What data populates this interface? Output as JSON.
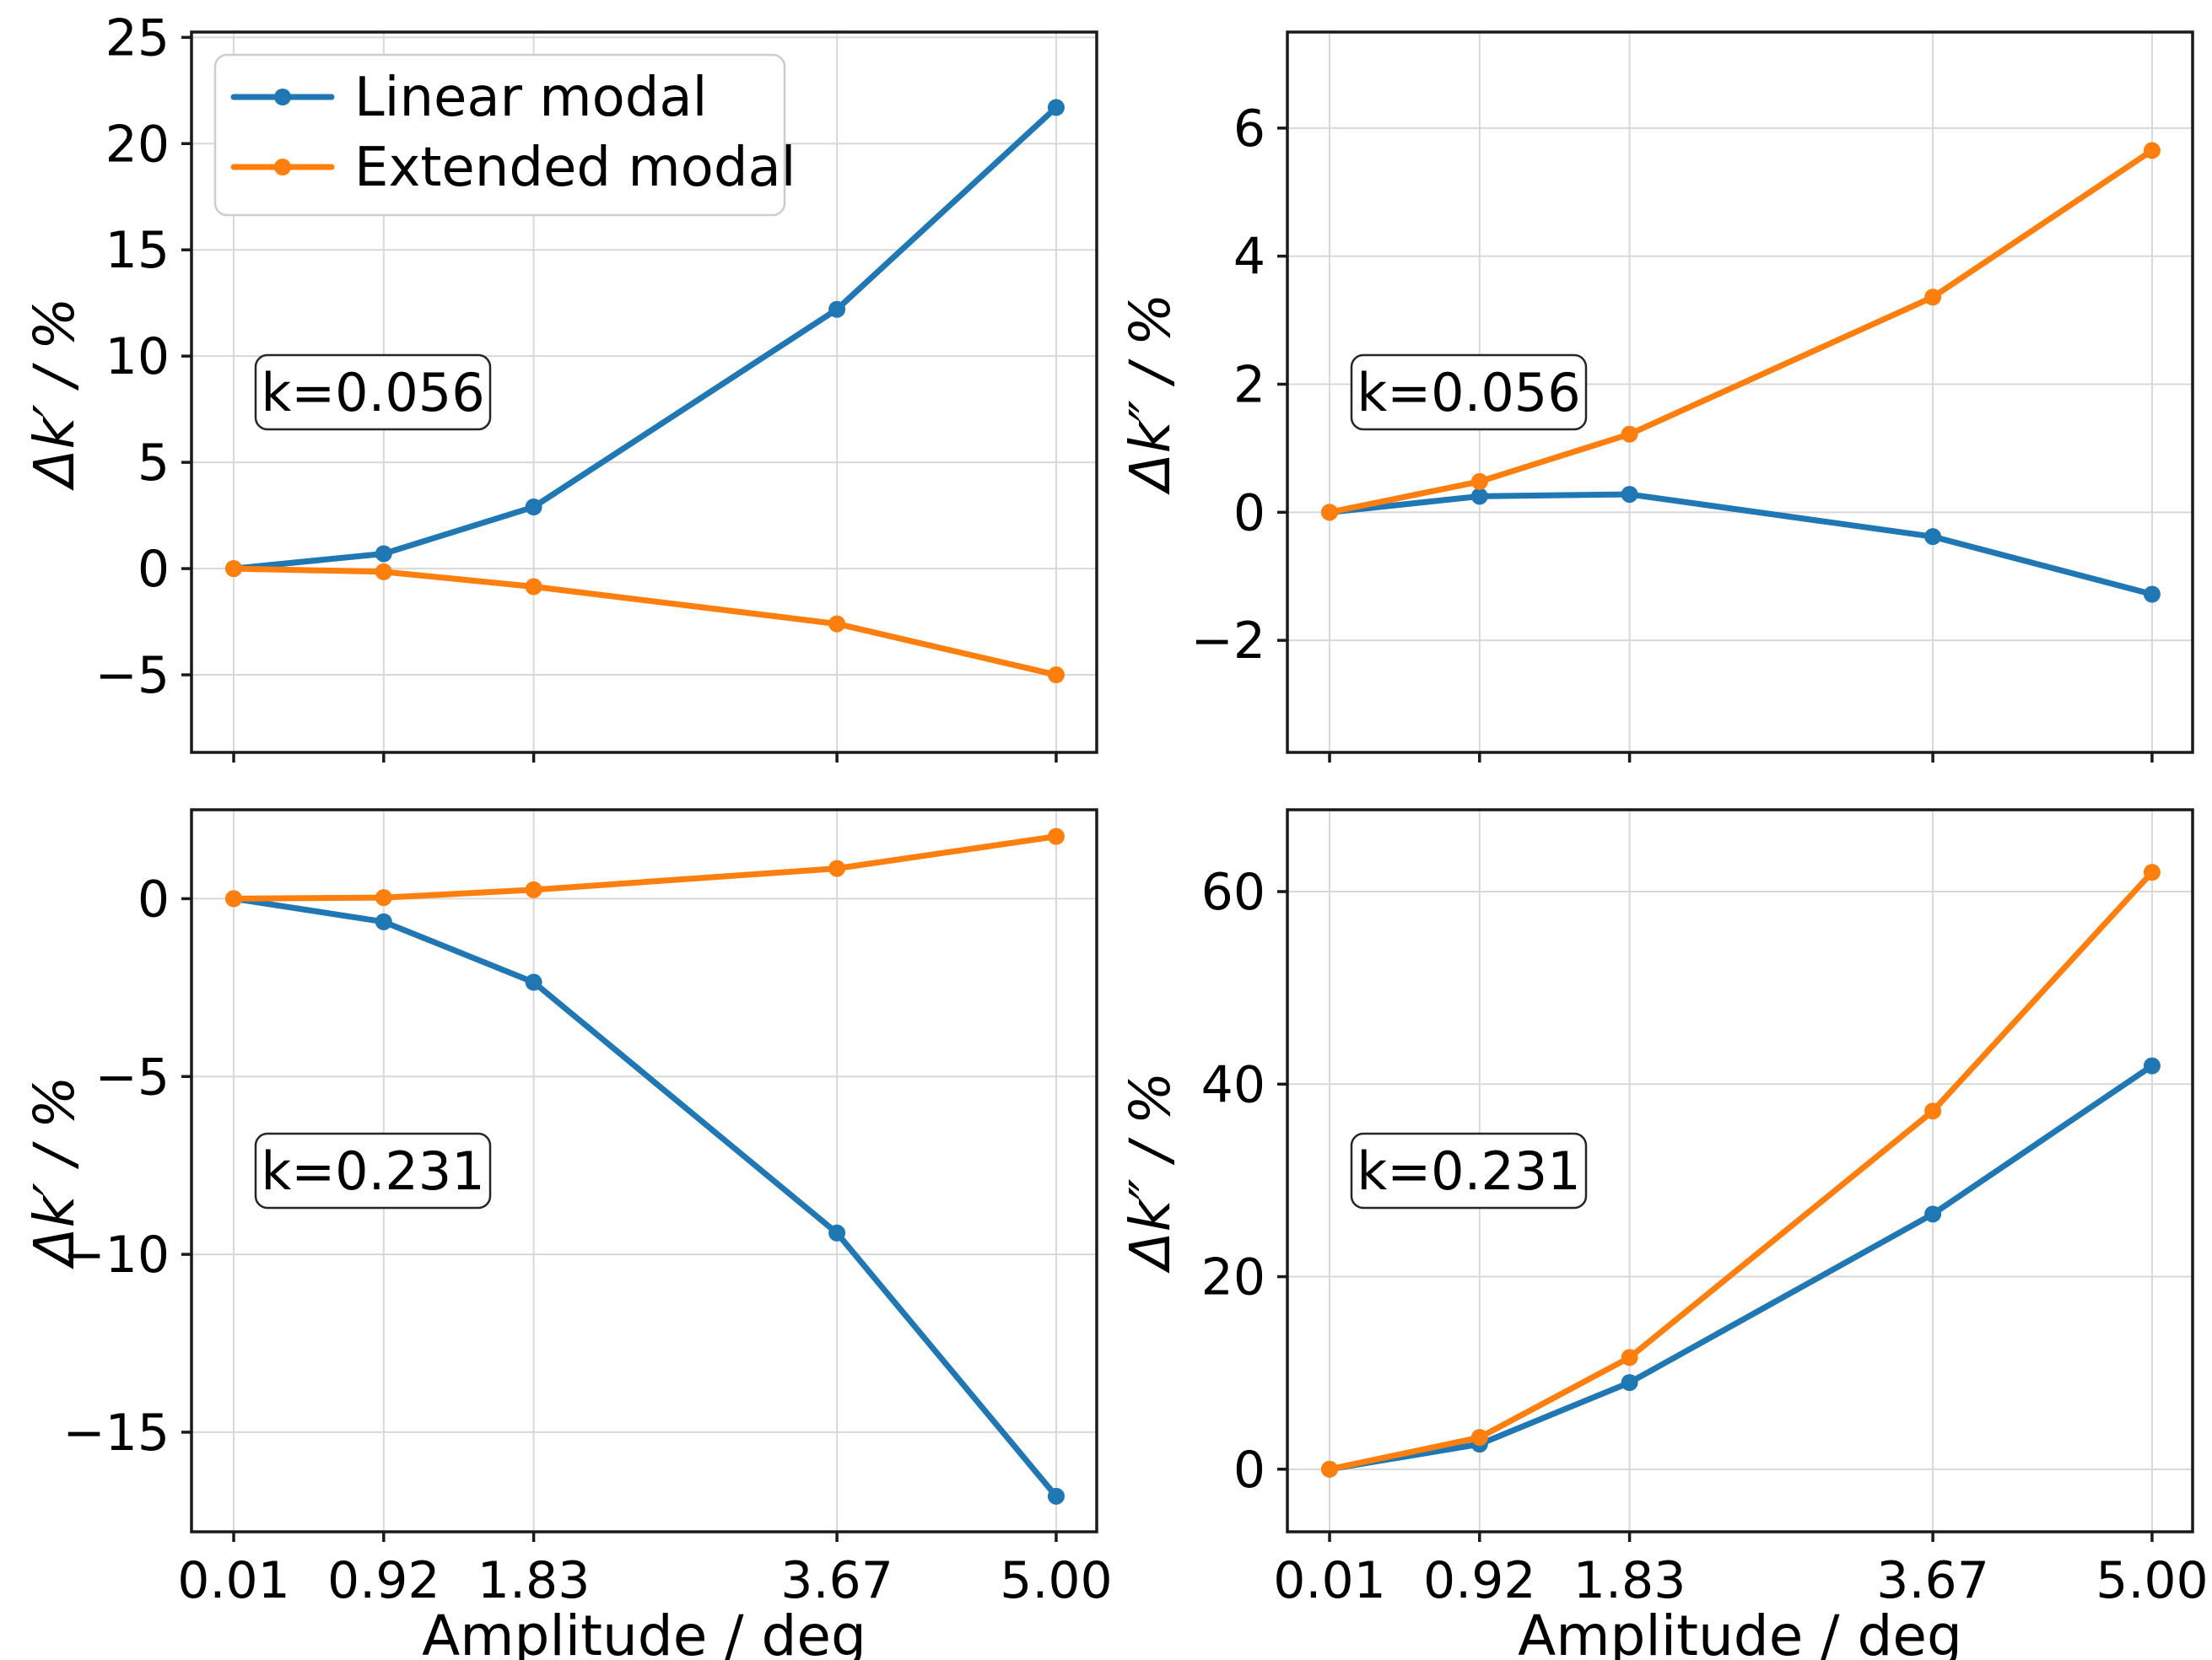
{
  "figure": {
    "title": "",
    "background": "#ffffff",
    "grid_color": "#d8d8d8",
    "spine_color": "#1a1a1a",
    "text_color": "#000000",
    "legend": {
      "position": "upper-left-of-first-subplot",
      "items": [
        {
          "label": "Linear modal",
          "color": "#1f77b4",
          "marker": "circle"
        },
        {
          "label": "Extended modal",
          "color": "#ff7f0e",
          "marker": "circle"
        }
      ]
    }
  },
  "chart_data": [
    {
      "id": "top-left",
      "type": "line",
      "annotation": "k=0.056",
      "ylabel": "Δk′ / %",
      "xlabel": "Amplitude / deg",
      "show_x_labels": false,
      "show_legend": true,
      "x": [
        0.01,
        0.92,
        1.83,
        3.67,
        5.0
      ],
      "xtick_labels": [
        "0.01",
        "0.92",
        "1.83",
        "3.67",
        "5.00"
      ],
      "xlim": [
        -0.246,
        5.246
      ],
      "yticks": [
        25,
        20,
        15,
        10,
        5,
        0,
        -5
      ],
      "ytick_labels": [
        "25",
        "20",
        "15",
        "10",
        "5",
        "0",
        "−5"
      ],
      "ylim": [
        -8.65,
        25.25
      ],
      "grid": true,
      "series": [
        {
          "name": "Linear modal",
          "color": "#1f77b4",
          "values": [
            0.0,
            0.7,
            2.9,
            12.2,
            21.7
          ]
        },
        {
          "name": "Extended modal",
          "color": "#ff7f0e",
          "values": [
            0.0,
            -0.15,
            -0.85,
            -2.6,
            -5.0
          ]
        }
      ]
    },
    {
      "id": "top-right",
      "type": "line",
      "annotation": "k=0.056",
      "ylabel": "Δk″ / %",
      "xlabel": "Amplitude / deg",
      "show_x_labels": false,
      "show_legend": false,
      "x": [
        0.01,
        0.92,
        1.83,
        3.67,
        5.0
      ],
      "xtick_labels": [
        "0.01",
        "0.92",
        "1.83",
        "3.67",
        "5.00"
      ],
      "xlim": [
        -0.246,
        5.246
      ],
      "yticks": [
        6,
        4,
        2,
        0,
        -2
      ],
      "ytick_labels": [
        "6",
        "4",
        "2",
        "0",
        "−2"
      ],
      "ylim": [
        -3.75,
        7.5
      ],
      "grid": true,
      "series": [
        {
          "name": "Linear modal",
          "color": "#1f77b4",
          "values": [
            0.0,
            0.25,
            0.28,
            -0.38,
            -1.28
          ]
        },
        {
          "name": "Extended modal",
          "color": "#ff7f0e",
          "values": [
            0.0,
            0.48,
            1.22,
            3.36,
            5.65
          ]
        }
      ]
    },
    {
      "id": "bottom-left",
      "type": "line",
      "annotation": "k=0.231",
      "ylabel": "Δk′ / %",
      "xlabel": "Amplitude / deg",
      "show_x_labels": true,
      "show_legend": false,
      "x": [
        0.01,
        0.92,
        1.83,
        3.67,
        5.0
      ],
      "xtick_labels": [
        "0.01",
        "0.92",
        "1.83",
        "3.67",
        "5.00"
      ],
      "xlim": [
        -0.246,
        5.246
      ],
      "yticks": [
        0,
        -5,
        -10,
        -15
      ],
      "ytick_labels": [
        "0",
        "−5",
        "−10",
        "−15"
      ],
      "ylim": [
        -17.8,
        2.5
      ],
      "grid": true,
      "series": [
        {
          "name": "Linear modal",
          "color": "#1f77b4",
          "values": [
            0.0,
            -0.65,
            -2.35,
            -9.4,
            -16.8
          ]
        },
        {
          "name": "Extended modal",
          "color": "#ff7f0e",
          "values": [
            0.0,
            0.03,
            0.25,
            0.85,
            1.75
          ]
        }
      ]
    },
    {
      "id": "bottom-right",
      "type": "line",
      "annotation": "k=0.231",
      "ylabel": "Δk″ / %",
      "xlabel": "Amplitude / deg",
      "show_x_labels": true,
      "show_legend": false,
      "x": [
        0.01,
        0.92,
        1.83,
        3.67,
        5.0
      ],
      "xtick_labels": [
        "0.01",
        "0.92",
        "1.83",
        "3.67",
        "5.00"
      ],
      "xlim": [
        -0.246,
        5.246
      ],
      "yticks": [
        60,
        40,
        20,
        0
      ],
      "ytick_labels": [
        "60",
        "40",
        "20",
        "0"
      ],
      "ylim": [
        -6.5,
        68.5
      ],
      "grid": true,
      "series": [
        {
          "name": "Linear modal",
          "color": "#1f77b4",
          "values": [
            0.0,
            2.6,
            9.0,
            26.5,
            41.9
          ]
        },
        {
          "name": "Extended modal",
          "color": "#ff7f0e",
          "values": [
            0.0,
            3.3,
            11.6,
            37.2,
            62.0
          ]
        }
      ]
    }
  ]
}
